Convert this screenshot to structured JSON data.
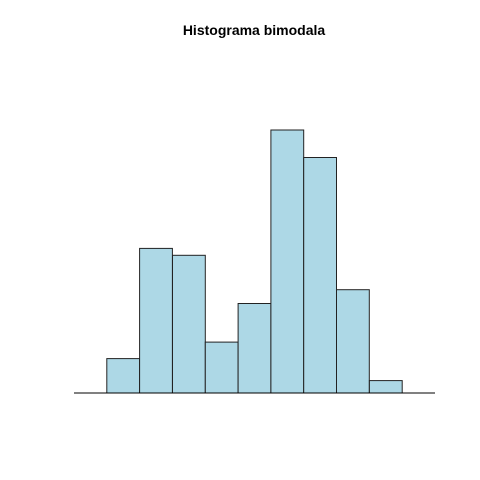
{
  "chart_data": {
    "type": "bar",
    "title": "Histograma bimodala",
    "xlabel": "",
    "ylabel": "",
    "x_range": [
      0,
      11
    ],
    "bins": [
      {
        "start": 1,
        "end": 2,
        "count": 2.5
      },
      {
        "start": 2,
        "end": 3,
        "count": 10.5
      },
      {
        "start": 3,
        "end": 4,
        "count": 10
      },
      {
        "start": 4,
        "end": 5,
        "count": 3.7
      },
      {
        "start": 5,
        "end": 6,
        "count": 6.5
      },
      {
        "start": 6,
        "end": 7,
        "count": 19.1
      },
      {
        "start": 7,
        "end": 8,
        "count": 17.1
      },
      {
        "start": 8,
        "end": 9,
        "count": 7.5
      },
      {
        "start": 9,
        "end": 10,
        "count": 0.9
      }
    ],
    "ylim": [
      0,
      19.1
    ],
    "bar_color": "#ADD8E6",
    "border_color": "#222222",
    "axes_shown": false,
    "grid": false
  }
}
